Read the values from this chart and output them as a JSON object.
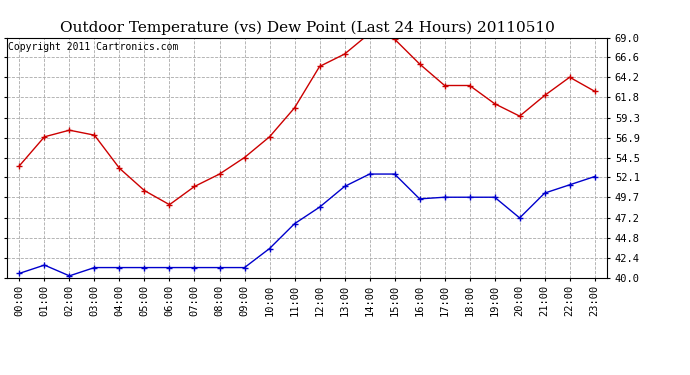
{
  "title": "Outdoor Temperature (vs) Dew Point (Last 24 Hours) 20110510",
  "copyright": "Copyright 2011 Cartronics.com",
  "x_labels": [
    "00:00",
    "01:00",
    "02:00",
    "03:00",
    "04:00",
    "05:00",
    "06:00",
    "07:00",
    "08:00",
    "09:00",
    "10:00",
    "11:00",
    "12:00",
    "13:00",
    "14:00",
    "15:00",
    "16:00",
    "17:00",
    "18:00",
    "19:00",
    "20:00",
    "21:00",
    "22:00",
    "23:00"
  ],
  "temp_data": [
    53.5,
    57.0,
    57.8,
    57.2,
    53.2,
    50.5,
    48.8,
    51.0,
    52.5,
    54.5,
    57.0,
    60.5,
    65.5,
    67.0,
    69.5,
    68.8,
    65.8,
    63.2,
    63.2,
    61.0,
    59.5,
    62.0,
    64.2,
    62.5
  ],
  "dew_data": [
    40.5,
    41.5,
    40.2,
    41.2,
    41.2,
    41.2,
    41.2,
    41.2,
    41.2,
    41.2,
    43.5,
    46.5,
    48.5,
    51.0,
    52.5,
    52.5,
    49.5,
    49.7,
    49.7,
    49.7,
    47.2,
    50.2,
    51.2,
    52.2
  ],
  "temp_color": "#cc0000",
  "dew_color": "#0000cc",
  "ylim": [
    40.0,
    69.0
  ],
  "yticks": [
    40.0,
    42.4,
    44.8,
    47.2,
    49.7,
    52.1,
    54.5,
    56.9,
    59.3,
    61.8,
    64.2,
    66.6,
    69.0
  ],
  "bg_color": "#ffffff",
  "grid_color": "#aaaaaa",
  "title_fontsize": 11,
  "copyright_fontsize": 7,
  "tick_fontsize": 7.5
}
